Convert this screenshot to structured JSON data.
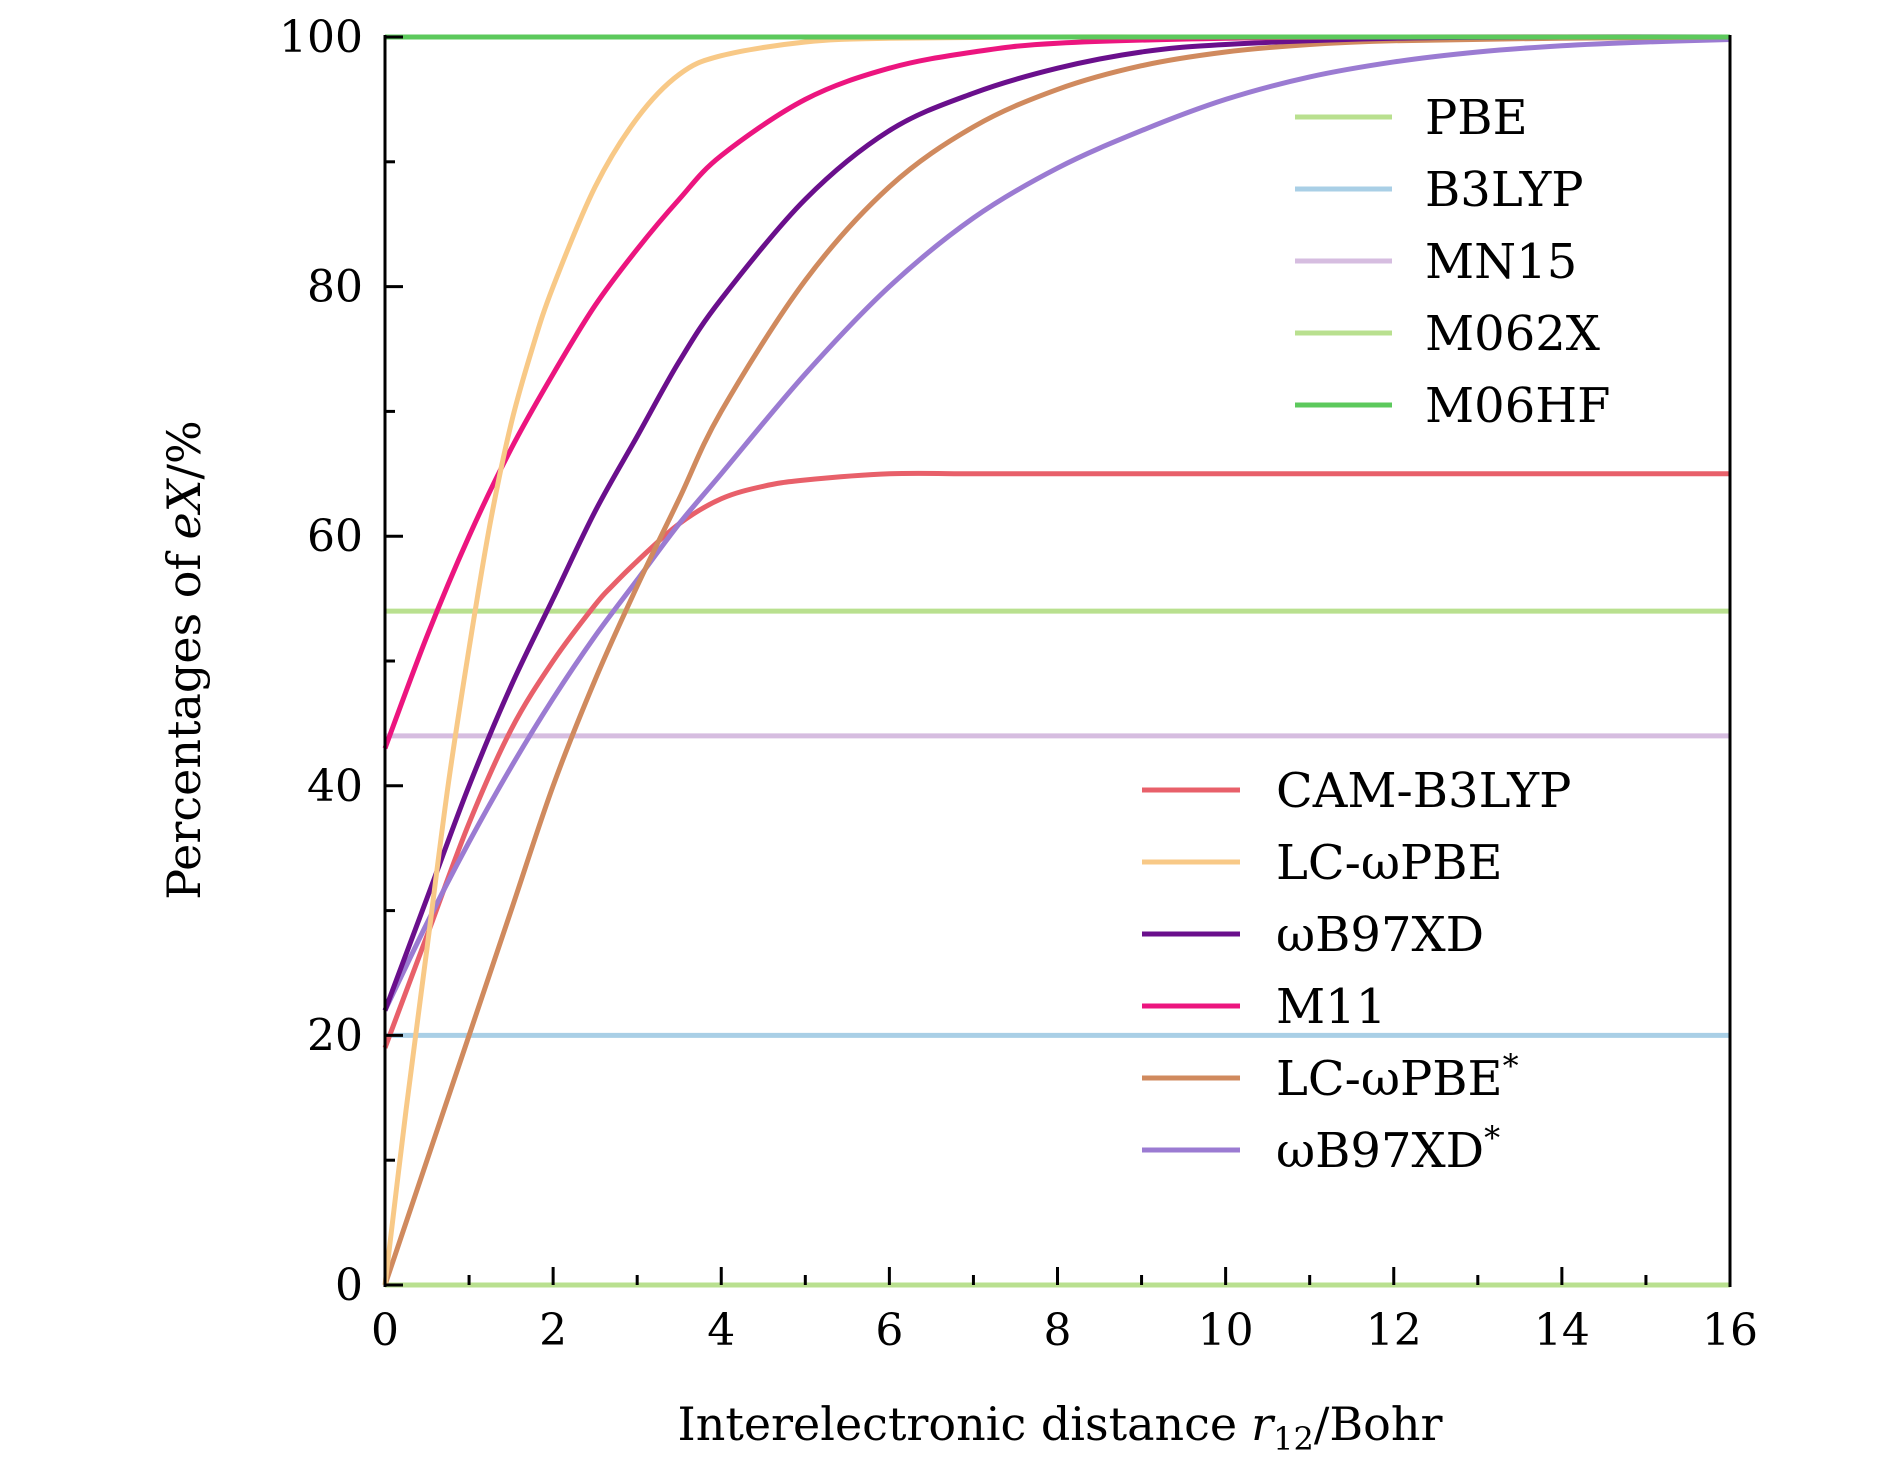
{
  "chart_data": {
    "type": "line",
    "xlabel": "Interelectronic distance",
    "xlabel_var": "r",
    "xlabel_sub": "12",
    "xlabel_unit": "/Bohr",
    "ylabel": "Percentages of",
    "ylabel_var": "eX",
    "ylabel_unit": "/%",
    "xlim": [
      0,
      16
    ],
    "ylim": [
      0,
      100
    ],
    "x_ticks": [
      "0",
      "2",
      "4",
      "6",
      "8",
      "10",
      "12",
      "14",
      "16"
    ],
    "y_ticks": [
      "0",
      "20",
      "40",
      "60",
      "80",
      "100"
    ],
    "grid": false,
    "legend_placement": [
      "top-right",
      "bottom-right"
    ],
    "series": [
      {
        "name": "PBE",
        "color": "#b9e08f",
        "kind": "constant",
        "value": 0
      },
      {
        "name": "B3LYP",
        "color": "#a9cfe6",
        "kind": "constant",
        "value": 20
      },
      {
        "name": "MN15",
        "color": "#d6bde0",
        "kind": "constant",
        "value": 44
      },
      {
        "name": "M062X",
        "color": "#b9e08f",
        "kind": "constant",
        "value": 54
      },
      {
        "name": "M06HF",
        "color": "#5cc95c",
        "kind": "constant",
        "value": 100
      },
      {
        "name": "CAM-B3LYP",
        "color": "#e8606a",
        "kind": "curve",
        "x": [
          0,
          0.5,
          1,
          1.5,
          2,
          2.5,
          2.7,
          3,
          3.5,
          4,
          4.5,
          5,
          6,
          7,
          8,
          10,
          12,
          14,
          16
        ],
        "y": [
          19,
          28,
          37,
          44.5,
          50,
          54.5,
          56,
          58,
          61,
          63,
          64,
          64.5,
          65,
          65,
          65,
          65,
          65,
          65,
          65
        ]
      },
      {
        "name": "LC-ωPBE",
        "color": "#f8c987",
        "kind": "curve",
        "x": [
          0,
          0.25,
          0.5,
          0.75,
          1,
          1.25,
          1.5,
          1.75,
          2,
          2.5,
          3,
          3.5,
          4,
          5,
          6,
          8,
          10,
          16
        ],
        "y": [
          0,
          14,
          27,
          40,
          51,
          61,
          69,
          75,
          80,
          88,
          93.5,
          97,
          98.5,
          99.6,
          99.9,
          100,
          100,
          100
        ]
      },
      {
        "name": "ωB97XD",
        "color": "#6a0f8c",
        "kind": "curve",
        "x": [
          0,
          0.5,
          1,
          1.5,
          2,
          2.5,
          3,
          3.5,
          4,
          5,
          6,
          7,
          8,
          9,
          10,
          12,
          14,
          16
        ],
        "y": [
          22,
          31,
          40,
          48,
          55,
          62,
          68,
          74,
          79,
          87,
          92.5,
          95.5,
          97.5,
          98.8,
          99.4,
          99.9,
          100,
          100
        ]
      },
      {
        "name": "M11",
        "color": "#ec157f",
        "kind": "curve",
        "x": [
          0,
          0.5,
          1,
          1.5,
          2,
          2.5,
          3,
          3.5,
          4,
          5,
          6,
          7,
          8,
          10,
          12,
          16
        ],
        "y": [
          43,
          52,
          60,
          67,
          73,
          78.5,
          83,
          87,
          90.5,
          95,
          97.5,
          98.8,
          99.5,
          99.9,
          100,
          100
        ]
      },
      {
        "name": "LC-ωPBE*",
        "color": "#d08a5e",
        "kind": "curve",
        "x": [
          0,
          0.5,
          1,
          1.5,
          2,
          2.5,
          3,
          3.5,
          4,
          5,
          6,
          7,
          8,
          9,
          10,
          11,
          12,
          14,
          16
        ],
        "y": [
          0,
          10,
          20,
          30,
          40,
          48.5,
          56,
          63,
          70,
          80.5,
          88,
          92.8,
          95.8,
          97.7,
          98.8,
          99.4,
          99.7,
          99.9,
          100
        ]
      },
      {
        "name": "ωB97XD*",
        "color": "#9b7bd2",
        "kind": "curve",
        "x": [
          0,
          0.5,
          1,
          1.5,
          2,
          2.5,
          3,
          3.5,
          4,
          5,
          6,
          7,
          8,
          9,
          10,
          11,
          12,
          13,
          14,
          15,
          16
        ],
        "y": [
          22,
          29,
          35.5,
          41.5,
          47,
          52,
          56.5,
          61,
          65,
          73,
          80,
          85.5,
          89.5,
          92.5,
          95,
          96.8,
          98,
          98.8,
          99.3,
          99.6,
          99.8
        ]
      }
    ],
    "legend_groups": [
      [
        "PBE",
        "B3LYP",
        "MN15",
        "M062X",
        "M06HF"
      ],
      [
        "CAM-B3LYP",
        "LC-ωPBE",
        "ωB97XD",
        "M11",
        "LC-ωPBE*",
        "ωB97XD*"
      ]
    ]
  }
}
